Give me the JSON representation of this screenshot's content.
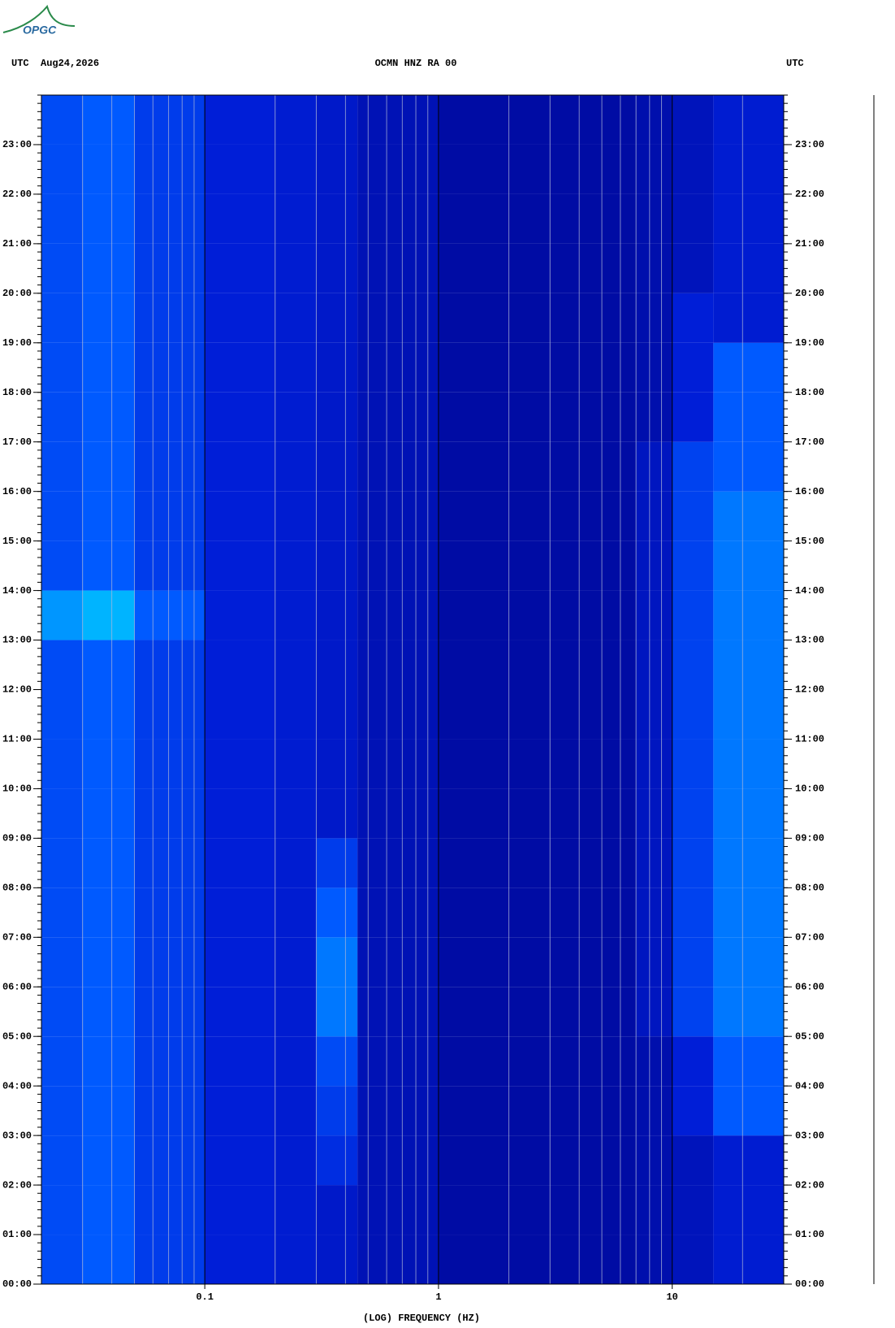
{
  "logo": "OPGC",
  "chart_data": {
    "type": "spectrogram",
    "header_left": "UTC  Aug24,2026",
    "title": "OCMN HNZ RA 00",
    "header_right": "UTC",
    "xlabel": "(LOG) FREQUENCY (HZ)",
    "xscale": "log",
    "xlim": [
      0.02,
      30
    ],
    "xticks": [
      0.1,
      1,
      10
    ],
    "x_minor_ticks": [
      0.03,
      0.04,
      0.05,
      0.06,
      0.07,
      0.08,
      0.09,
      0.2,
      0.3,
      0.4,
      0.5,
      0.6,
      0.7,
      0.8,
      0.9,
      2,
      3,
      4,
      5,
      6,
      7,
      8,
      9,
      20
    ],
    "ylim": [
      0,
      24
    ],
    "yticks": [
      {
        "value": 0,
        "label": "00:00"
      },
      {
        "value": 1,
        "label": "01:00"
      },
      {
        "value": 2,
        "label": "02:00"
      },
      {
        "value": 3,
        "label": "03:00"
      },
      {
        "value": 4,
        "label": "04:00"
      },
      {
        "value": 5,
        "label": "05:00"
      },
      {
        "value": 6,
        "label": "06:00"
      },
      {
        "value": 7,
        "label": "07:00"
      },
      {
        "value": 8,
        "label": "08:00"
      },
      {
        "value": 9,
        "label": "09:00"
      },
      {
        "value": 10,
        "label": "10:00"
      },
      {
        "value": 11,
        "label": "11:00"
      },
      {
        "value": 12,
        "label": "12:00"
      },
      {
        "value": 13,
        "label": "13:00"
      },
      {
        "value": 14,
        "label": "14:00"
      },
      {
        "value": 15,
        "label": "15:00"
      },
      {
        "value": 16,
        "label": "16:00"
      },
      {
        "value": 17,
        "label": "17:00"
      },
      {
        "value": 18,
        "label": "18:00"
      },
      {
        "value": 19,
        "label": "19:00"
      },
      {
        "value": 20,
        "label": "20:00"
      },
      {
        "value": 21,
        "label": "21:00"
      },
      {
        "value": 22,
        "label": "22:00"
      },
      {
        "value": 23,
        "label": "23:00"
      }
    ],
    "freq_bins": [
      0.02,
      0.03,
      0.05,
      0.1,
      0.2,
      0.3,
      0.45,
      1,
      3,
      7,
      10,
      15,
      30
    ],
    "hours": [
      0,
      1,
      2,
      3,
      4,
      5,
      6,
      7,
      8,
      9,
      10,
      11,
      12,
      13,
      14,
      15,
      16,
      17,
      18,
      19,
      20,
      21,
      22,
      23
    ],
    "intensity": [
      [
        0.45,
        0.5,
        0.4,
        0.3,
        0.28,
        0.25,
        0.18,
        0.12,
        0.12,
        0.15,
        0.2,
        0.28
      ],
      [
        0.45,
        0.5,
        0.4,
        0.3,
        0.28,
        0.25,
        0.18,
        0.12,
        0.12,
        0.15,
        0.2,
        0.28
      ],
      [
        0.45,
        0.5,
        0.4,
        0.3,
        0.28,
        0.35,
        0.18,
        0.12,
        0.12,
        0.15,
        0.2,
        0.28
      ],
      [
        0.45,
        0.5,
        0.4,
        0.3,
        0.28,
        0.4,
        0.18,
        0.12,
        0.12,
        0.15,
        0.3,
        0.5
      ],
      [
        0.45,
        0.5,
        0.4,
        0.3,
        0.28,
        0.45,
        0.18,
        0.12,
        0.12,
        0.15,
        0.3,
        0.5
      ],
      [
        0.45,
        0.5,
        0.4,
        0.3,
        0.28,
        0.55,
        0.18,
        0.12,
        0.12,
        0.22,
        0.42,
        0.55
      ],
      [
        0.45,
        0.5,
        0.4,
        0.3,
        0.28,
        0.55,
        0.18,
        0.12,
        0.12,
        0.22,
        0.42,
        0.55
      ],
      [
        0.45,
        0.5,
        0.4,
        0.3,
        0.28,
        0.5,
        0.18,
        0.12,
        0.12,
        0.22,
        0.42,
        0.55
      ],
      [
        0.45,
        0.5,
        0.4,
        0.3,
        0.28,
        0.4,
        0.18,
        0.12,
        0.12,
        0.22,
        0.42,
        0.55
      ],
      [
        0.45,
        0.5,
        0.4,
        0.3,
        0.28,
        0.25,
        0.18,
        0.12,
        0.12,
        0.22,
        0.42,
        0.55
      ],
      [
        0.45,
        0.5,
        0.4,
        0.3,
        0.28,
        0.25,
        0.18,
        0.12,
        0.12,
        0.22,
        0.42,
        0.55
      ],
      [
        0.45,
        0.5,
        0.4,
        0.3,
        0.28,
        0.25,
        0.18,
        0.12,
        0.12,
        0.22,
        0.42,
        0.55
      ],
      [
        0.45,
        0.5,
        0.4,
        0.3,
        0.28,
        0.25,
        0.18,
        0.12,
        0.12,
        0.22,
        0.42,
        0.55
      ],
      [
        0.6,
        0.65,
        0.5,
        0.3,
        0.28,
        0.25,
        0.18,
        0.12,
        0.12,
        0.22,
        0.42,
        0.55
      ],
      [
        0.45,
        0.5,
        0.4,
        0.3,
        0.28,
        0.25,
        0.18,
        0.12,
        0.12,
        0.22,
        0.42,
        0.55
      ],
      [
        0.45,
        0.5,
        0.4,
        0.3,
        0.28,
        0.25,
        0.18,
        0.12,
        0.12,
        0.22,
        0.42,
        0.55
      ],
      [
        0.45,
        0.5,
        0.4,
        0.3,
        0.28,
        0.25,
        0.18,
        0.12,
        0.12,
        0.22,
        0.42,
        0.5
      ],
      [
        0.45,
        0.5,
        0.4,
        0.3,
        0.28,
        0.25,
        0.18,
        0.12,
        0.12,
        0.15,
        0.3,
        0.5
      ],
      [
        0.45,
        0.5,
        0.4,
        0.3,
        0.28,
        0.25,
        0.18,
        0.12,
        0.12,
        0.15,
        0.3,
        0.5
      ],
      [
        0.45,
        0.5,
        0.4,
        0.3,
        0.28,
        0.25,
        0.18,
        0.12,
        0.12,
        0.15,
        0.3,
        0.28
      ],
      [
        0.45,
        0.5,
        0.4,
        0.3,
        0.28,
        0.25,
        0.18,
        0.12,
        0.12,
        0.15,
        0.2,
        0.28
      ],
      [
        0.45,
        0.5,
        0.4,
        0.3,
        0.28,
        0.25,
        0.18,
        0.12,
        0.12,
        0.15,
        0.2,
        0.28
      ],
      [
        0.45,
        0.5,
        0.4,
        0.3,
        0.28,
        0.25,
        0.18,
        0.12,
        0.12,
        0.15,
        0.2,
        0.28
      ],
      [
        0.45,
        0.5,
        0.4,
        0.3,
        0.28,
        0.25,
        0.18,
        0.12,
        0.12,
        0.15,
        0.2,
        0.28
      ]
    ]
  }
}
